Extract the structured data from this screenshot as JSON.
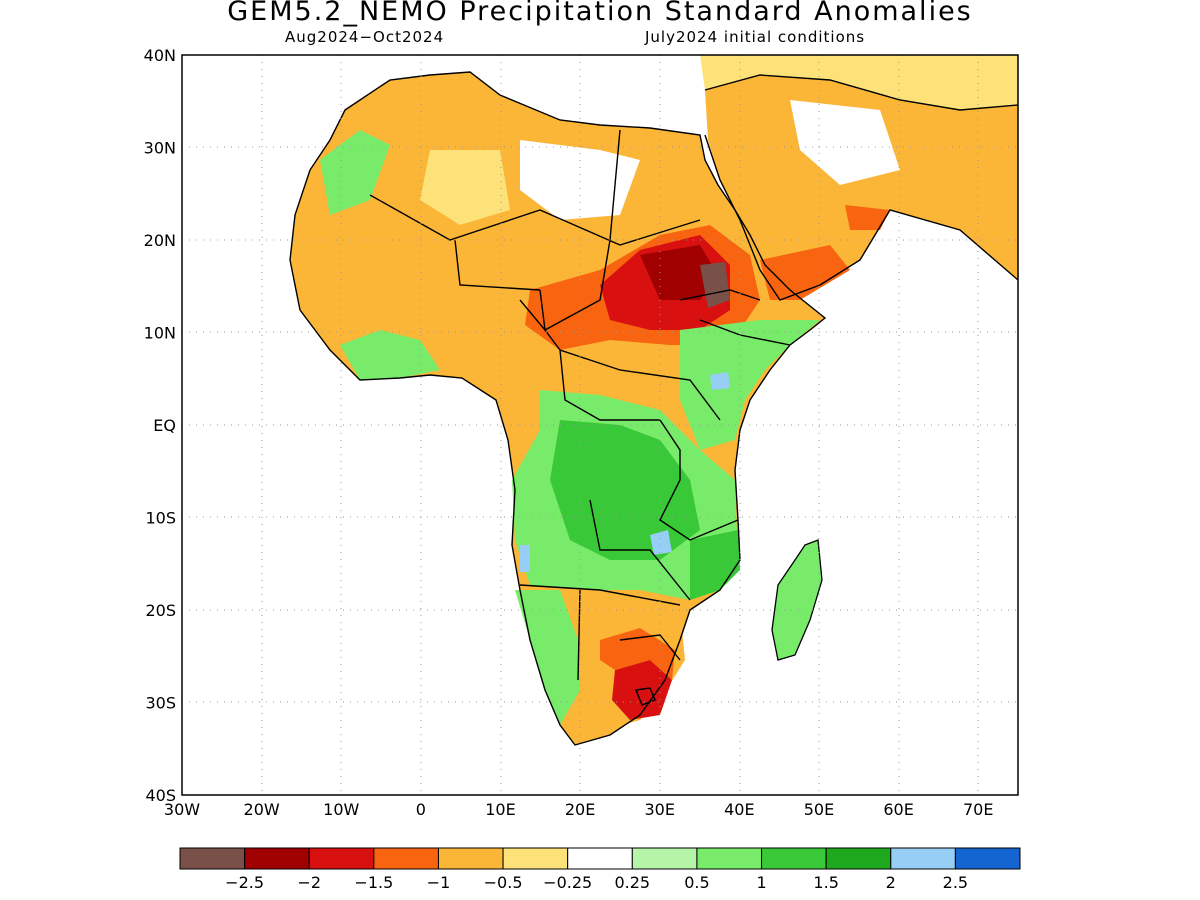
{
  "title": "GEM5.2_NEMO Precipitation Standard Anomalies",
  "subtitle_left": "Aug2024−Oct2024",
  "subtitle_right": "July2024 initial conditions",
  "map": {
    "lon_range": [
      -30,
      75
    ],
    "lat_range": [
      -40,
      40
    ],
    "lat_ticks": [
      {
        "value": 40,
        "label": "40N"
      },
      {
        "value": 30,
        "label": "30N"
      },
      {
        "value": 20,
        "label": "20N"
      },
      {
        "value": 10,
        "label": "10N"
      },
      {
        "value": 0,
        "label": "EQ"
      },
      {
        "value": -10,
        "label": "10S"
      },
      {
        "value": -20,
        "label": "20S"
      },
      {
        "value": -30,
        "label": "30S"
      },
      {
        "value": -40,
        "label": "40S"
      }
    ],
    "lon_ticks": [
      {
        "value": -30,
        "label": "30W"
      },
      {
        "value": -20,
        "label": "20W"
      },
      {
        "value": -10,
        "label": "10W"
      },
      {
        "value": 0,
        "label": "0"
      },
      {
        "value": 10,
        "label": "10E"
      },
      {
        "value": 20,
        "label": "20E"
      },
      {
        "value": 30,
        "label": "30E"
      },
      {
        "value": 40,
        "label": "40E"
      },
      {
        "value": 50,
        "label": "50E"
      },
      {
        "value": 60,
        "label": "60E"
      },
      {
        "value": 70,
        "label": "70E"
      }
    ]
  },
  "legend": {
    "colors": [
      "#7a5148",
      "#a00000",
      "#d81010",
      "#f86410",
      "#fbb638",
      "#fde27a",
      "#ffffff",
      "#b6f5a8",
      "#78eb6a",
      "#38c838",
      "#1ea81e",
      "#96cef5",
      "#1464d2"
    ],
    "labels": [
      "−2.5",
      "−2",
      "−1.5",
      "−1",
      "−0.5",
      "−0.25",
      "0.25",
      "0.5",
      "1",
      "1.5",
      "2",
      "2.5"
    ]
  },
  "colors": {
    "very_dry": "#7a5148",
    "dry_2": "#a00000",
    "dry_15": "#d81010",
    "dry_1": "#f86410",
    "dry_05": "#fbb638",
    "dry_025": "#fde27a",
    "neutral": "#ffffff",
    "wet_025": "#b6f5a8",
    "wet_05": "#78eb6a",
    "wet_1": "#38c838",
    "wet_15": "#1ea81e",
    "wet_2": "#96cef5",
    "wet_25": "#1464d2"
  }
}
